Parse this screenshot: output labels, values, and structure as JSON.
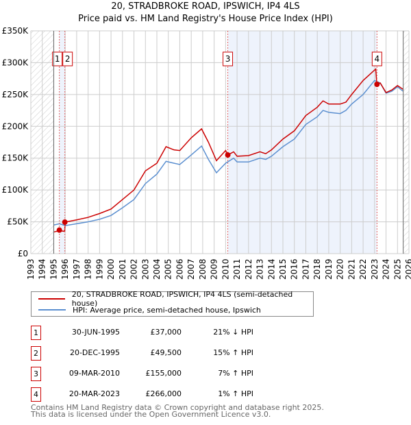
{
  "chart_data": {
    "type": "line",
    "title": "20, STRADBROKE ROAD, IPSWICH, IP4 4LS",
    "subtitle": "Price paid vs. HM Land Registry's House Price Index (HPI)",
    "xlim": [
      1993,
      2026
    ],
    "ylim": [
      0,
      350000
    ],
    "y_ticks": [
      "£0",
      "£50K",
      "£100K",
      "£150K",
      "£200K",
      "£250K",
      "£300K",
      "£350K"
    ],
    "x_ticks": [
      "1993",
      "1994",
      "1995",
      "1996",
      "1997",
      "1998",
      "1999",
      "2000",
      "2001",
      "2002",
      "2003",
      "2004",
      "2005",
      "2006",
      "2007",
      "2008",
      "2009",
      "2010",
      "2011",
      "2012",
      "2013",
      "2014",
      "2015",
      "2016",
      "2017",
      "2018",
      "2019",
      "2020",
      "2021",
      "2022",
      "2023",
      "2024",
      "2025",
      "2026"
    ],
    "series": [
      {
        "name": "20, STRADBROKE ROAD, IPSWICH, IP4 4LS (semi-detached house)",
        "color": "#cc0000",
        "x": [
          1995.0,
          1995.5,
          1995.95,
          1996.0,
          1997,
          1998,
          1999,
          2000,
          2001,
          2002,
          2003,
          2004,
          2004.8,
          2005.5,
          2006,
          2007,
          2007.9,
          2008.5,
          2009.2,
          2010,
          2010.2,
          2010.7,
          2011,
          2012,
          2013,
          2013.5,
          2014,
          2015,
          2016,
          2017,
          2018,
          2018.5,
          2019,
          2020,
          2020.5,
          2021,
          2022,
          2023.1,
          2023.2,
          2023.5,
          2024,
          2024.5,
          2025,
          2025.5
        ],
        "y": [
          34000,
          36000,
          35000,
          49500,
          53000,
          57000,
          63000,
          70000,
          85000,
          100000,
          130000,
          142000,
          168000,
          163000,
          162000,
          182000,
          196000,
          175000,
          146000,
          162000,
          155000,
          160000,
          153000,
          154000,
          160000,
          157000,
          163000,
          180000,
          193000,
          217000,
          230000,
          240000,
          235000,
          235000,
          238000,
          250000,
          272000,
          290000,
          266000,
          268000,
          253000,
          257000,
          264000,
          258000
        ]
      },
      {
        "name": "HPI: Average price, semi-detached house, Ipswich",
        "color": "#5b8fd0",
        "x": [
          1995.0,
          1995.5,
          1996,
          1997,
          1998,
          1999,
          2000,
          2001,
          2002,
          2003,
          2004,
          2004.8,
          2005.5,
          2006,
          2007,
          2007.9,
          2008.5,
          2009.2,
          2010,
          2010.7,
          2011,
          2012,
          2013,
          2013.5,
          2014,
          2015,
          2016,
          2017,
          2018,
          2018.5,
          2019,
          2020,
          2020.5,
          2021,
          2022,
          2023,
          2023.5,
          2024,
          2024.5,
          2025,
          2025.5
        ],
        "y": [
          45000,
          47000,
          44000,
          47000,
          50000,
          54000,
          60000,
          72000,
          85000,
          110000,
          125000,
          145000,
          142000,
          140000,
          155000,
          169000,
          148000,
          127000,
          142000,
          150000,
          144000,
          144000,
          150000,
          148000,
          153000,
          168000,
          180000,
          203000,
          215000,
          225000,
          222000,
          220000,
          225000,
          235000,
          250000,
          272000,
          268000,
          252000,
          255000,
          262000,
          255000
        ]
      }
    ],
    "sales": [
      {
        "label": "1",
        "x": 1995.49,
        "price": 37000,
        "date": "30-JUN-1995",
        "price_text": "£37,000",
        "hpi": "21% ↓ HPI"
      },
      {
        "label": "2",
        "x": 1995.97,
        "price": 49500,
        "date": "20-DEC-1995",
        "price_text": "£49,500",
        "hpi": "15% ↑ HPI"
      },
      {
        "label": "3",
        "x": 2010.19,
        "price": 155000,
        "date": "09-MAR-2010",
        "price_text": "£155,000",
        "hpi": "7% ↑ HPI"
      },
      {
        "label": "4",
        "x": 2023.21,
        "price": 266000,
        "date": "20-MAR-2023",
        "price_text": "£266,000",
        "hpi": "1% ↑ HPI"
      }
    ],
    "hatched_before": 1995.0,
    "hatched_after": 2025.5,
    "grid": true,
    "legend_placement": "bottom"
  },
  "footer": {
    "line1": "Contains HM Land Registry data © Crown copyright and database right 2025.",
    "line2": "This data is licensed under the Open Government Licence v3.0."
  }
}
